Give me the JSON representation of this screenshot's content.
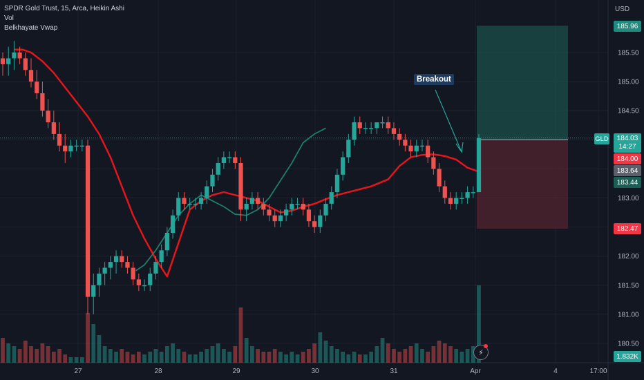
{
  "legend": {
    "title": "SPDR Gold Trust, 15, Arca, Heikin Ashi",
    "vol": "Vol",
    "vwap": "Belkhayate Vwap"
  },
  "currency": "USD",
  "symbol": "GLD",
  "annotation": "Breakout",
  "colors": {
    "up": "#26a69a",
    "down": "#ef5350",
    "vwap_main": "#e3161c",
    "vwap_lower": "#1f7c6e",
    "profit_zone": "#1b4f48",
    "loss_zone": "#4d2330",
    "background": "#131722"
  },
  "axis_tags": {
    "target": "185.96",
    "last": "184.03",
    "countdown": "14:27",
    "entry": "184.00",
    "vwap_val": "183.64",
    "vwap_val2": "183.44",
    "stop": "182.47",
    "volume": "1.832K"
  },
  "chart_data": {
    "type": "candlestick",
    "title": "SPDR Gold Trust, 15, Arca, Heikin Ashi",
    "y_axis": {
      "range": [
        180.3,
        186.5
      ],
      "ticks": [
        "185.50",
        "185.00",
        "184.50",
        "184.00",
        "183.50",
        "183.00",
        "182.50",
        "182.00",
        "181.50",
        "181.00",
        "180.50"
      ],
      "unit": "USD"
    },
    "x_axis": {
      "ticks": [
        "27",
        "28",
        "29",
        "30",
        "31",
        "Apr",
        "4",
        "17:00"
      ]
    },
    "candles": [
      [
        185.4,
        185.5,
        185.1,
        185.3
      ],
      [
        185.3,
        185.6,
        185.1,
        185.4
      ],
      [
        185.4,
        185.7,
        185.2,
        185.5
      ],
      [
        185.5,
        185.6,
        185.3,
        185.4
      ],
      [
        185.4,
        185.5,
        185.1,
        185.2
      ],
      [
        185.2,
        185.4,
        184.9,
        185.0
      ],
      [
        185.0,
        185.2,
        184.7,
        184.8
      ],
      [
        184.8,
        185.0,
        184.4,
        184.5
      ],
      [
        184.5,
        184.7,
        184.2,
        184.3
      ],
      [
        184.3,
        184.5,
        184.0,
        184.1
      ],
      [
        184.1,
        184.3,
        183.8,
        183.9
      ],
      [
        183.9,
        184.1,
        183.6,
        183.8
      ],
      [
        183.8,
        184.0,
        183.7,
        183.9
      ],
      [
        183.9,
        184.0,
        183.8,
        183.9
      ],
      [
        183.9,
        184.0,
        183.8,
        183.9
      ],
      [
        183.9,
        184.0,
        181.0,
        181.3
      ],
      [
        181.3,
        181.7,
        181.0,
        181.5
      ],
      [
        181.5,
        181.8,
        181.3,
        181.7
      ],
      [
        181.7,
        181.9,
        181.5,
        181.8
      ],
      [
        181.8,
        182.0,
        181.6,
        181.9
      ],
      [
        181.9,
        182.1,
        181.7,
        182.0
      ],
      [
        182.0,
        182.1,
        181.8,
        181.9
      ],
      [
        181.9,
        182.0,
        181.7,
        181.8
      ],
      [
        181.8,
        181.9,
        181.5,
        181.6
      ],
      [
        181.6,
        181.7,
        181.4,
        181.5
      ],
      [
        181.5,
        181.6,
        181.4,
        181.5
      ],
      [
        181.5,
        181.8,
        181.4,
        181.7
      ],
      [
        181.7,
        182.0,
        181.6,
        181.9
      ],
      [
        181.9,
        182.2,
        181.8,
        182.1
      ],
      [
        182.1,
        182.5,
        182.0,
        182.4
      ],
      [
        182.4,
        182.8,
        182.3,
        182.7
      ],
      [
        182.7,
        183.1,
        182.6,
        183.0
      ],
      [
        183.0,
        183.1,
        182.8,
        182.9
      ],
      [
        182.9,
        183.0,
        182.8,
        182.9
      ],
      [
        182.9,
        183.0,
        182.8,
        182.9
      ],
      [
        182.9,
        183.1,
        182.8,
        183.0
      ],
      [
        183.0,
        183.3,
        182.9,
        183.2
      ],
      [
        183.2,
        183.5,
        183.1,
        183.4
      ],
      [
        183.4,
        183.7,
        183.3,
        183.6
      ],
      [
        183.6,
        183.8,
        183.5,
        183.7
      ],
      [
        183.7,
        183.8,
        183.6,
        183.7
      ],
      [
        183.7,
        183.8,
        183.5,
        183.6
      ],
      [
        183.6,
        183.7,
        182.6,
        182.8
      ],
      [
        182.8,
        183.0,
        182.6,
        182.9
      ],
      [
        182.9,
        183.1,
        182.8,
        183.0
      ],
      [
        183.0,
        183.1,
        182.8,
        182.9
      ],
      [
        182.9,
        183.0,
        182.7,
        182.8
      ],
      [
        182.8,
        182.9,
        182.6,
        182.7
      ],
      [
        182.7,
        182.8,
        182.5,
        182.6
      ],
      [
        182.6,
        182.8,
        182.5,
        182.7
      ],
      [
        182.7,
        182.9,
        182.6,
        182.8
      ],
      [
        182.8,
        183.0,
        182.7,
        182.9
      ],
      [
        182.9,
        183.0,
        182.8,
        182.9
      ],
      [
        182.9,
        183.0,
        182.7,
        182.8
      ],
      [
        182.8,
        182.9,
        182.5,
        182.6
      ],
      [
        182.6,
        182.7,
        182.4,
        182.5
      ],
      [
        182.5,
        182.8,
        182.4,
        182.7
      ],
      [
        182.7,
        183.0,
        182.6,
        182.9
      ],
      [
        182.9,
        183.2,
        182.8,
        183.1
      ],
      [
        183.1,
        183.5,
        183.0,
        183.4
      ],
      [
        183.4,
        183.8,
        183.3,
        183.7
      ],
      [
        183.7,
        184.1,
        183.6,
        184.0
      ],
      [
        184.0,
        184.4,
        183.9,
        184.3
      ],
      [
        184.3,
        184.4,
        184.1,
        184.2
      ],
      [
        184.2,
        184.3,
        184.1,
        184.2
      ],
      [
        184.2,
        184.3,
        184.1,
        184.2
      ],
      [
        184.2,
        184.3,
        184.1,
        184.3
      ],
      [
        184.3,
        184.4,
        184.2,
        184.3
      ],
      [
        184.3,
        184.4,
        184.1,
        184.2
      ],
      [
        184.2,
        184.3,
        184.0,
        184.1
      ],
      [
        184.1,
        184.2,
        183.9,
        184.0
      ],
      [
        184.0,
        184.1,
        183.8,
        183.9
      ],
      [
        183.9,
        184.0,
        183.7,
        183.8
      ],
      [
        183.8,
        184.0,
        183.7,
        183.9
      ],
      [
        183.9,
        184.0,
        183.8,
        183.9
      ],
      [
        183.9,
        184.0,
        183.6,
        183.7
      ],
      [
        183.7,
        183.8,
        183.4,
        183.5
      ],
      [
        183.5,
        183.6,
        183.1,
        183.2
      ],
      [
        183.2,
        183.3,
        182.9,
        183.0
      ],
      [
        183.0,
        183.1,
        182.8,
        182.9
      ],
      [
        182.9,
        183.1,
        182.8,
        183.0
      ],
      [
        183.0,
        183.1,
        182.9,
        183.0
      ],
      [
        183.0,
        183.2,
        182.9,
        183.1
      ],
      [
        183.1,
        183.2,
        183.0,
        183.1
      ],
      [
        183.1,
        184.1,
        183.1,
        184.03
      ]
    ],
    "volume": [
      0.45,
      0.35,
      0.3,
      0.25,
      0.4,
      0.3,
      0.25,
      0.35,
      0.3,
      0.2,
      0.25,
      0.15,
      0.1,
      0.1,
      0.1,
      0.9,
      0.7,
      0.5,
      0.3,
      0.25,
      0.2,
      0.25,
      0.2,
      0.15,
      0.2,
      0.15,
      0.2,
      0.25,
      0.2,
      0.3,
      0.35,
      0.25,
      0.2,
      0.15,
      0.15,
      0.2,
      0.25,
      0.3,
      0.35,
      0.25,
      0.2,
      0.3,
      1.0,
      0.45,
      0.3,
      0.25,
      0.2,
      0.2,
      0.25,
      0.2,
      0.15,
      0.2,
      0.15,
      0.2,
      0.25,
      0.35,
      0.55,
      0.4,
      0.3,
      0.25,
      0.2,
      0.15,
      0.2,
      0.15,
      0.15,
      0.2,
      0.3,
      0.45,
      0.35,
      0.25,
      0.2,
      0.25,
      0.3,
      0.35,
      0.25,
      0.2,
      0.3,
      0.4,
      0.35,
      0.3,
      0.25,
      0.2,
      0.25,
      0.3,
      1.5
    ],
    "vwap_upper": [
      185.55,
      185.55,
      185.5,
      185.35,
      185.15,
      184.9,
      184.65,
      184.4,
      184.1,
      183.7,
      183.2,
      182.7,
      182.3,
      181.95,
      181.65,
      182.8,
      182.95,
      183.05,
      183.1,
      183.05,
      183.0,
      182.95,
      182.85,
      182.75,
      182.78,
      182.85,
      182.9,
      182.98,
      183.05,
      183.1,
      183.15,
      183.2,
      183.32,
      183.55,
      183.7,
      183.74,
      183.75,
      183.72,
      183.66,
      183.52,
      183.45
    ],
    "vwap_upper_x": [
      4,
      7,
      10,
      14,
      18,
      22,
      26,
      30,
      34,
      38,
      42,
      46,
      50,
      54,
      58,
      66,
      70,
      74,
      78,
      82,
      86,
      90,
      94,
      98,
      102,
      106,
      110,
      114,
      118,
      122,
      126,
      130,
      136,
      140,
      144,
      148,
      152,
      156,
      160,
      164,
      168
    ],
    "vwap_lower": [
      181.75,
      181.85,
      182.1,
      182.4,
      182.7,
      182.9,
      183.05,
      182.95,
      182.85,
      182.72,
      182.7,
      182.8,
      183.0,
      183.3,
      183.6,
      183.95,
      184.1,
      184.2
    ],
    "vwap_lower_x": [
      47,
      50,
      54,
      58,
      62,
      66,
      70,
      74,
      78,
      82,
      86,
      90,
      94,
      98,
      102,
      106,
      110,
      114
    ],
    "trade": {
      "entry": 184.0,
      "target": 185.96,
      "stop": 182.47
    }
  }
}
